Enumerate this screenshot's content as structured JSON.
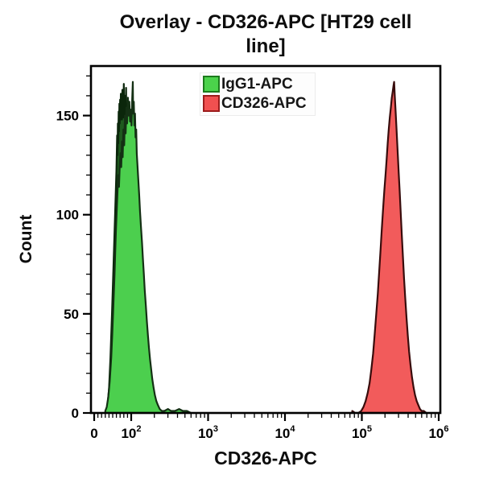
{
  "chart_data": {
    "type": "area",
    "subtype": "flow-cytometry-histogram-overlay",
    "title": "Overlay - CD326-APC [HT29 cell line]",
    "title_lines": [
      "Overlay - CD326-APC [HT29 cell",
      "line]"
    ],
    "xlabel": "CD326-APC",
    "ylabel": "Count",
    "grid": false,
    "x_axis": {
      "scale": "logicle",
      "linear_max": 100,
      "linear_minor_step": 10,
      "log_decades": [
        2,
        6
      ],
      "ticks": [
        {
          "value": 0,
          "label": "0"
        },
        {
          "value": 100,
          "label": "10^2"
        },
        {
          "value": 1000,
          "label": "10^3"
        },
        {
          "value": 10000,
          "label": "10^4"
        },
        {
          "value": 100000,
          "label": "10^5"
        },
        {
          "value": 1000000,
          "label": "10^6"
        }
      ]
    },
    "y_axis": {
      "min": 0,
      "max": 175,
      "minor_step": 10,
      "major_ticks": [
        {
          "value": 0,
          "label": "0"
        },
        {
          "value": 50,
          "label": "50"
        },
        {
          "value": 100,
          "label": "100"
        },
        {
          "value": 150,
          "label": "150"
        }
      ]
    },
    "legend": {
      "position": "top-center",
      "items": [
        {
          "label": "IgG1-APC",
          "fill": "#4bd24b",
          "border": "#1c7a1c"
        },
        {
          "label": "CD326-APC",
          "fill": "#f15050",
          "border": "#9c1c1c"
        }
      ]
    },
    "series": [
      {
        "name": "IgG1-APC",
        "fill": "#4ccf4e",
        "stroke": "#143014",
        "shadow_fill": "#1e5a1e",
        "shadow_stroke": "#0b260b",
        "peak_x": 105,
        "peak_count": 167,
        "shadow_points": [
          [
            36,
            4
          ],
          [
            40,
            12
          ],
          [
            44,
            28
          ],
          [
            48,
            50
          ],
          [
            51,
            68
          ],
          [
            54,
            85
          ],
          [
            56,
            98
          ],
          [
            58,
            110
          ],
          [
            60,
            122
          ],
          [
            61,
            132
          ],
          [
            62,
            140
          ],
          [
            63,
            130
          ],
          [
            64,
            146
          ],
          [
            65,
            136
          ],
          [
            66,
            152
          ],
          [
            67,
            142
          ],
          [
            68,
            156
          ],
          [
            69,
            146
          ],
          [
            70,
            158
          ],
          [
            71,
            148
          ],
          [
            72,
            161
          ],
          [
            73,
            151
          ],
          [
            74,
            158
          ],
          [
            75,
            148
          ],
          [
            76,
            163
          ],
          [
            77,
            152
          ],
          [
            78,
            159
          ],
          [
            79,
            149
          ],
          [
            80,
            166
          ],
          [
            81,
            153
          ],
          [
            82,
            160
          ],
          [
            83,
            150
          ],
          [
            84,
            157
          ],
          [
            85,
            147
          ],
          [
            86,
            164
          ],
          [
            87,
            150
          ],
          [
            88,
            156
          ],
          [
            89,
            145
          ],
          [
            90,
            152
          ],
          [
            92,
            143
          ],
          [
            94,
            149
          ],
          [
            96,
            139
          ],
          [
            98,
            145
          ],
          [
            100,
            135
          ],
          [
            102,
            140
          ],
          [
            104,
            131
          ],
          [
            107,
            136
          ],
          [
            110,
            126
          ],
          [
            113,
            118
          ],
          [
            116,
            110
          ],
          [
            120,
            101
          ],
          [
            124,
            92
          ],
          [
            128,
            83
          ],
          [
            132,
            74
          ],
          [
            136,
            65
          ],
          [
            140,
            56
          ],
          [
            145,
            47
          ],
          [
            150,
            39
          ],
          [
            156,
            30
          ],
          [
            162,
            23
          ],
          [
            168,
            17
          ],
          [
            175,
            12
          ],
          [
            182,
            8
          ],
          [
            190,
            5
          ],
          [
            200,
            3
          ],
          [
            212,
            2
          ],
          [
            226,
            1
          ],
          [
            240,
            0
          ]
        ],
        "points": [
          [
            30,
            1
          ],
          [
            34,
            3
          ],
          [
            38,
            8
          ],
          [
            42,
            16
          ],
          [
            46,
            28
          ],
          [
            49,
            40
          ],
          [
            52,
            55
          ],
          [
            55,
            70
          ],
          [
            57,
            82
          ],
          [
            59,
            93
          ],
          [
            61,
            103
          ],
          [
            63,
            112
          ],
          [
            65,
            120
          ],
          [
            67,
            114
          ],
          [
            69,
            124
          ],
          [
            71,
            131
          ],
          [
            73,
            124
          ],
          [
            75,
            137
          ],
          [
            77,
            129
          ],
          [
            79,
            143
          ],
          [
            81,
            135
          ],
          [
            83,
            150
          ],
          [
            85,
            141
          ],
          [
            87,
            154
          ],
          [
            89,
            146
          ],
          [
            91,
            159
          ],
          [
            93,
            150
          ],
          [
            95,
            157
          ],
          [
            97,
            147
          ],
          [
            99,
            153
          ],
          [
            101,
            145
          ],
          [
            103,
            158
          ],
          [
            105,
            167
          ],
          [
            106,
            151
          ],
          [
            108,
            157
          ],
          [
            110,
            145
          ],
          [
            112,
            151
          ],
          [
            114,
            139
          ],
          [
            116,
            143
          ],
          [
            118,
            131
          ],
          [
            121,
            124
          ],
          [
            124,
            117
          ],
          [
            127,
            110
          ],
          [
            130,
            102
          ],
          [
            134,
            94
          ],
          [
            138,
            86
          ],
          [
            142,
            78
          ],
          [
            146,
            70
          ],
          [
            150,
            62
          ],
          [
            155,
            54
          ],
          [
            160,
            46
          ],
          [
            165,
            39
          ],
          [
            170,
            33
          ],
          [
            176,
            27
          ],
          [
            182,
            22
          ],
          [
            188,
            17
          ],
          [
            195,
            13
          ],
          [
            203,
            9
          ],
          [
            212,
            6
          ],
          [
            222,
            4
          ],
          [
            235,
            2
          ],
          [
            250,
            1
          ],
          [
            270,
            1
          ],
          [
            300,
            2
          ],
          [
            330,
            1
          ],
          [
            370,
            1
          ],
          [
            420,
            2
          ],
          [
            470,
            1
          ],
          [
            530,
            1
          ],
          [
            600,
            0
          ]
        ]
      },
      {
        "name": "CD326-APC",
        "fill": "#f25b5b",
        "stroke": "#380c0c",
        "peak_x": 263000,
        "peak_count": 167,
        "points": [
          [
            75000,
            1
          ],
          [
            82000,
            0
          ],
          [
            90000,
            0
          ],
          [
            98000,
            1
          ],
          [
            105000,
            3
          ],
          [
            112000,
            6
          ],
          [
            119000,
            10
          ],
          [
            126000,
            15
          ],
          [
            133000,
            22
          ],
          [
            140000,
            30
          ],
          [
            147000,
            40
          ],
          [
            154000,
            50
          ],
          [
            161000,
            60
          ],
          [
            168000,
            71
          ],
          [
            175000,
            82
          ],
          [
            182000,
            93
          ],
          [
            189000,
            103
          ],
          [
            196000,
            112
          ],
          [
            203000,
            120
          ],
          [
            210000,
            128
          ],
          [
            217000,
            136
          ],
          [
            224000,
            143
          ],
          [
            231000,
            149
          ],
          [
            238000,
            154
          ],
          [
            245000,
            159
          ],
          [
            252000,
            162
          ],
          [
            258000,
            165
          ],
          [
            263000,
            167
          ],
          [
            268000,
            160
          ],
          [
            273000,
            154
          ],
          [
            279000,
            147
          ],
          [
            286000,
            139
          ],
          [
            294000,
            130
          ],
          [
            302000,
            121
          ],
          [
            311000,
            111
          ],
          [
            321000,
            100
          ],
          [
            331000,
            90
          ],
          [
            342000,
            79
          ],
          [
            354000,
            68
          ],
          [
            367000,
            58
          ],
          [
            381000,
            48
          ],
          [
            396000,
            39
          ],
          [
            412000,
            31
          ],
          [
            430000,
            24
          ],
          [
            449000,
            18
          ],
          [
            470000,
            13
          ],
          [
            492000,
            9
          ],
          [
            516000,
            6
          ],
          [
            542000,
            4
          ],
          [
            570000,
            2
          ],
          [
            600000,
            1
          ],
          [
            640000,
            1
          ],
          [
            690000,
            0
          ]
        ]
      }
    ]
  }
}
